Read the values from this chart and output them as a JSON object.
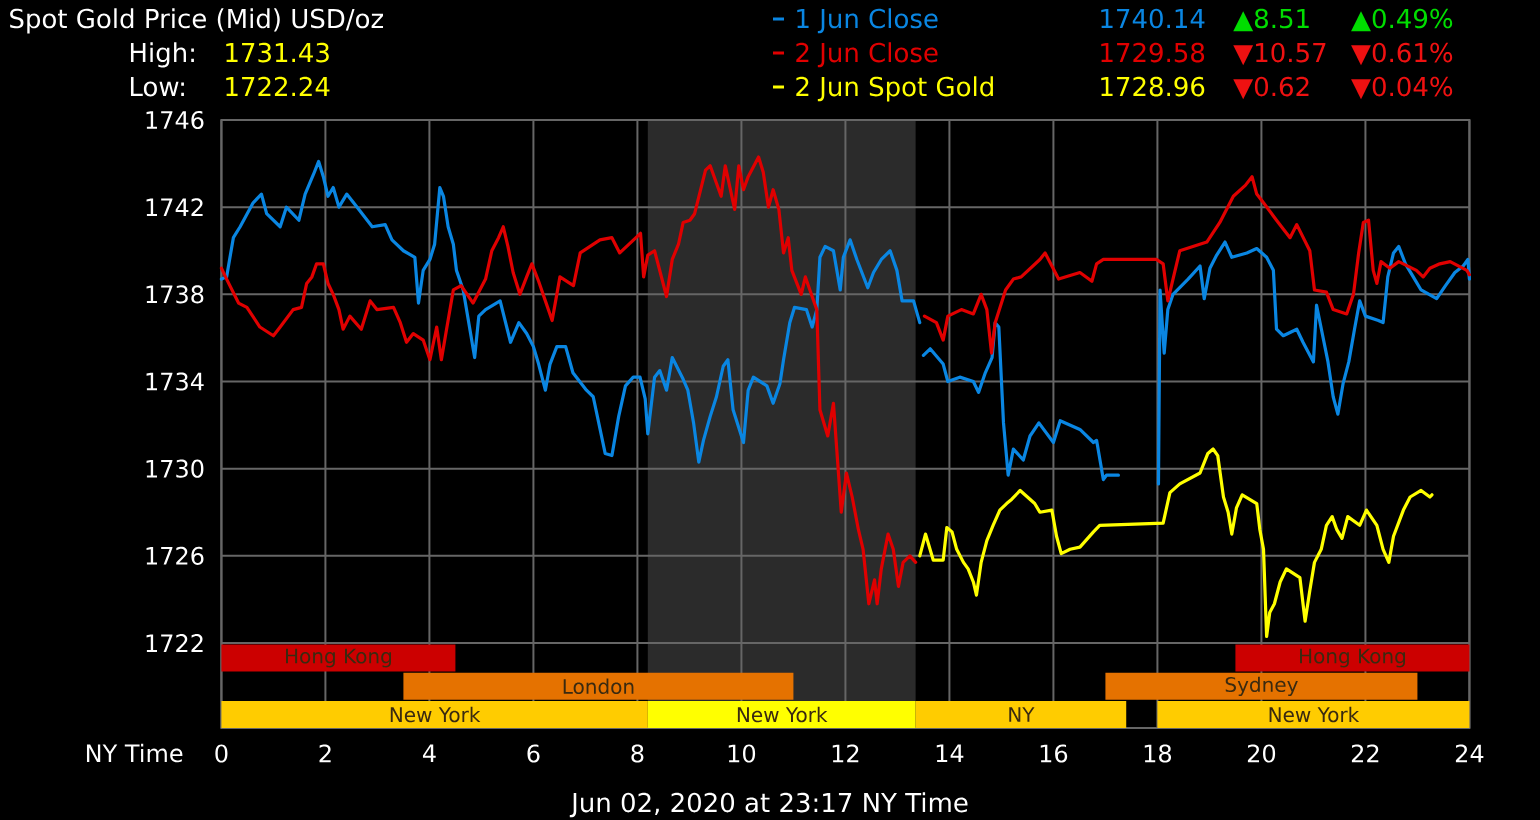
{
  "chart_data": {
    "type": "line",
    "title": "Spot Gold Price (Mid) USD/oz",
    "xlabel": "NY Time",
    "annotations": [
      "High:",
      "1731.43",
      "Low:",
      "1722.24",
      "1740.14",
      "▲8.51",
      "▲0.49%",
      "1729.58",
      "▼10.57",
      "▼0.61%",
      "1728.96",
      "▼0.62",
      "▼0.04%",
      "Jun 02, 2020 at 23:17 NY Time"
    ],
    "xlim": [
      0,
      24
    ],
    "xticks": [
      0,
      2,
      4,
      6,
      8,
      10,
      12,
      14,
      16,
      18,
      20,
      22,
      24
    ],
    "ylim": [
      1718.1,
      1746
    ],
    "yticks": [
      1722,
      1726,
      1730,
      1734,
      1738,
      1742,
      1746
    ],
    "grid": true,
    "legend": "top right",
    "bands": [
      {
        "axis": "x",
        "from": 8.2,
        "to": 13.35,
        "color": "#2b2b2b"
      },
      {
        "axis": "x",
        "from": 0,
        "to": 4.5,
        "label": "Hong Kong",
        "color": "#cc0000"
      },
      {
        "axis": "x",
        "from": 19.5,
        "to": 24,
        "label": "Hong Kong",
        "color": "#cc0000"
      },
      {
        "axis": "x",
        "from": 3.5,
        "to": 11,
        "label": "London",
        "color": "#e57200"
      },
      {
        "axis": "x",
        "from": 17,
        "to": 23,
        "label": "Sydney",
        "color": "#e57200"
      },
      {
        "axis": "x",
        "from": 0,
        "to": 8.2,
        "label": "New York",
        "color": "#ffcc00"
      },
      {
        "axis": "x",
        "from": 8.2,
        "to": 13.35,
        "label": "New York",
        "color": "#ffff00"
      },
      {
        "axis": "x",
        "from": 13.35,
        "to": 17.4,
        "label": "NY",
        "color": "#ffcc00"
      },
      {
        "axis": "x",
        "from": 18,
        "to": 24,
        "label": "New York",
        "color": "#ffcc00"
      }
    ],
    "series": [
      {
        "name": "1 Jun Close",
        "color": "#0a86e2",
        "x": [
          0,
          0.1,
          0.23,
          0.36,
          0.61,
          0.77,
          0.87,
          1.13,
          1.25,
          1.49,
          1.61,
          1.77,
          1.87,
          1.96,
          2.05,
          2.15,
          2.26,
          2.41,
          2.64,
          2.9,
          3.15,
          3.28,
          3.5,
          3.72,
          3.79,
          3.88,
          4.01,
          4.1,
          4.2,
          4.27,
          4.36,
          4.46,
          4.52,
          4.65,
          4.87,
          4.95,
          5.08,
          5.36,
          5.56,
          5.72,
          5.87,
          6.0,
          6.1,
          6.23,
          6.32,
          6.45,
          6.62,
          6.76,
          7.02,
          7.15,
          7.38,
          7.51,
          7.64,
          7.77,
          7.92,
          8.05,
          8.15,
          8.2,
          8.33,
          8.43,
          8.56,
          8.67,
          8.88,
          8.97,
          9.08,
          9.18,
          9.27,
          9.4,
          9.52,
          9.65,
          9.74,
          9.84,
          10.04,
          10.13,
          10.23,
          10.49,
          10.61,
          10.74,
          10.81,
          10.93,
          11.02,
          11.25,
          11.36,
          11.45,
          11.51,
          11.61,
          11.77,
          11.9,
          11.96,
          12.09,
          12.22,
          12.43,
          12.54,
          12.69,
          12.86,
          12.99,
          13.09,
          13.31,
          13.43,
          13.47,
          13.5,
          13.63,
          13.88,
          13.97,
          14.2,
          14.46,
          14.56,
          14.69,
          14.82,
          14.88,
          14.95,
          15.04,
          15.13,
          15.23,
          15.42,
          15.55,
          15.72,
          16.0,
          16.13,
          16.51,
          16.77,
          16.83,
          16.96,
          17.02,
          17.25,
          17.6,
          18.02,
          18.05,
          18.13,
          18.2,
          18.3,
          18.59,
          18.82,
          18.9,
          19.01,
          19.14,
          19.3,
          19.43,
          19.72,
          19.91,
          20.1,
          20.23,
          20.29,
          20.42,
          20.68,
          20.8,
          21.0,
          21.06,
          21.28,
          21.38,
          21.47,
          21.57,
          21.68,
          21.79,
          21.89,
          22.0,
          22.25,
          22.34,
          22.43,
          22.54,
          22.64,
          22.77,
          22.92,
          23.07,
          23.37,
          23.54,
          23.72,
          23.88,
          23.97,
          24.0
        ],
        "values": [
          1738.7,
          1738.8,
          1740.6,
          1741.1,
          1742.2,
          1742.6,
          1741.7,
          1741.1,
          1742.0,
          1741.4,
          1742.6,
          1743.5,
          1744.1,
          1743.4,
          1742.5,
          1742.9,
          1742.0,
          1742.6,
          1741.9,
          1741.1,
          1741.2,
          1740.5,
          1740.0,
          1739.7,
          1737.6,
          1739.1,
          1739.6,
          1740.3,
          1742.9,
          1742.5,
          1741.1,
          1740.3,
          1739.1,
          1738.2,
          1735.1,
          1737.0,
          1737.3,
          1737.7,
          1735.8,
          1736.7,
          1736.2,
          1735.6,
          1734.8,
          1733.6,
          1734.8,
          1735.6,
          1735.6,
          1734.4,
          1733.6,
          1733.3,
          1730.7,
          1730.6,
          1732.4,
          1733.8,
          1734.2,
          1734.2,
          1733.2,
          1731.6,
          1734.2,
          1734.5,
          1733.6,
          1735.1,
          1734.1,
          1733.6,
          1732.1,
          1730.3,
          1731.3,
          1732.4,
          1733.3,
          1734.7,
          1735.0,
          1732.7,
          1731.2,
          1733.6,
          1734.2,
          1733.8,
          1733.0,
          1733.9,
          1735.0,
          1736.7,
          1737.4,
          1737.3,
          1736.5,
          1737.3,
          1739.7,
          1740.2,
          1740.0,
          1738.2,
          1739.7,
          1740.5,
          1739.6,
          1738.3,
          1739.0,
          1739.6,
          1740.0,
          1739.1,
          1737.7,
          1737.7,
          1736.7,
          null,
          1735.2,
          1735.5,
          1734.8,
          1734.0,
          1734.2,
          1734.0,
          1733.5,
          1734.4,
          1735.1,
          1736.7,
          1736.5,
          1732.1,
          1729.7,
          1730.9,
          1730.4,
          1731.5,
          1732.1,
          1731.2,
          1732.2,
          1731.8,
          1731.2,
          1731.3,
          1729.5,
          1729.7,
          1729.7,
          null,
          1729.3,
          1738.2,
          1735.3,
          1737.3,
          1738.0,
          1738.7,
          1739.3,
          1737.8,
          1739.2,
          1739.8,
          1740.4,
          1739.7,
          1739.9,
          1740.1,
          1739.7,
          1739.1,
          1736.4,
          1736.1,
          1736.4,
          1735.8,
          1734.9,
          1737.5,
          1734.9,
          1733.3,
          1732.5,
          1733.9,
          1734.9,
          1736.4,
          1737.7,
          1737.0,
          1736.8,
          1736.7,
          1738.8,
          1739.9,
          1740.2,
          1739.4,
          1738.8,
          1738.2,
          1737.8,
          1738.4,
          1739.0,
          1739.3,
          1739.6,
          1738.7
        ]
      },
      {
        "name": "2 Jun Close",
        "color": "#e00000",
        "x": [
          0,
          0.1,
          0.33,
          0.49,
          0.74,
          1.0,
          1.13,
          1.38,
          1.54,
          1.64,
          1.74,
          1.83,
          1.96,
          2.05,
          2.15,
          2.26,
          2.34,
          2.47,
          2.69,
          2.86,
          2.99,
          3.31,
          3.44,
          3.56,
          3.69,
          3.88,
          4.01,
          4.14,
          4.23,
          4.33,
          4.46,
          4.61,
          4.84,
          5.08,
          5.2,
          5.33,
          5.42,
          5.51,
          5.61,
          5.74,
          5.87,
          5.97,
          6.1,
          6.23,
          6.36,
          6.51,
          6.77,
          6.9,
          7.28,
          7.51,
          7.66,
          8.06,
          8.12,
          8.2,
          8.33,
          8.56,
          8.67,
          8.79,
          8.88,
          9.01,
          9.1,
          9.31,
          9.4,
          9.61,
          9.69,
          9.78,
          9.87,
          9.95,
          10.04,
          10.13,
          10.33,
          10.42,
          10.52,
          10.61,
          10.72,
          10.81,
          10.9,
          10.97,
          11.15,
          11.23,
          11.36,
          11.45,
          11.51,
          11.66,
          11.77,
          11.92,
          12.02,
          12.13,
          12.25,
          12.34,
          12.45,
          12.56,
          12.61,
          12.69,
          12.82,
          12.92,
          13.02,
          13.11,
          13.24,
          13.35,
          13.44,
          13.52,
          13.75,
          13.88,
          13.97,
          14.23,
          14.46,
          14.61,
          14.72,
          14.81,
          14.88,
          15.08,
          15.23,
          15.38,
          15.74,
          15.84,
          16.1,
          16.51,
          16.74,
          16.83,
          16.96,
          17.98,
          18.11,
          18.2,
          18.43,
          18.95,
          19.2,
          19.46,
          19.69,
          19.82,
          19.91,
          20.04,
          20.29,
          20.55,
          20.68,
          20.93,
          21.02,
          21.25,
          21.38,
          21.64,
          21.77,
          21.87,
          21.96,
          22.06,
          22.15,
          22.22,
          22.3,
          22.47,
          22.64,
          22.98,
          23.11,
          23.24,
          23.43,
          23.63,
          23.95,
          24.0
        ],
        "values": [
          1739.2,
          1738.7,
          1737.6,
          1737.4,
          1736.5,
          1736.1,
          1736.5,
          1737.3,
          1737.4,
          1738.5,
          1738.8,
          1739.4,
          1739.4,
          1738.5,
          1738.0,
          1737.3,
          1736.4,
          1737.0,
          1736.4,
          1737.7,
          1737.3,
          1737.4,
          1736.7,
          1735.8,
          1736.2,
          1735.9,
          1735.0,
          1736.5,
          1735.0,
          1736.4,
          1738.2,
          1738.4,
          1737.6,
          1738.7,
          1740.0,
          1740.6,
          1741.1,
          1740.2,
          1739.0,
          1738.0,
          1738.8,
          1739.4,
          1738.6,
          1737.7,
          1736.8,
          1738.8,
          1738.4,
          1739.9,
          1740.5,
          1740.6,
          1739.9,
          1740.8,
          1738.8,
          1739.8,
          1740.0,
          1737.9,
          1739.6,
          1740.3,
          1741.3,
          1741.4,
          1741.7,
          1743.7,
          1743.9,
          1742.5,
          1743.9,
          1742.9,
          1741.9,
          1743.9,
          1742.8,
          1743.4,
          1744.3,
          1743.6,
          1742.0,
          1742.8,
          1741.9,
          1739.9,
          1740.6,
          1739.1,
          1738.0,
          1738.8,
          1737.9,
          1737.3,
          1732.7,
          1731.5,
          1733.0,
          1728.0,
          1729.8,
          1728.7,
          1727.2,
          1726.3,
          1723.8,
          1724.9,
          1723.8,
          1725.4,
          1727.0,
          1726.3,
          1724.6,
          1725.7,
          1726.0,
          1725.7,
          null,
          1737.0,
          1736.7,
          1735.9,
          1737.0,
          1737.3,
          1737.1,
          1738.0,
          1737.3,
          1735.3,
          1736.7,
          1738.2,
          1738.7,
          1738.8,
          1739.6,
          1739.9,
          1738.7,
          1739.0,
          1738.6,
          1739.4,
          1739.6,
          1739.6,
          1739.4,
          1737.7,
          1740.0,
          1740.4,
          1741.3,
          1742.5,
          1743.0,
          1743.4,
          1742.6,
          1742.2,
          1741.4,
          1740.6,
          1741.2,
          1740.0,
          1738.2,
          1738.1,
          1737.3,
          1737.1,
          1738.0,
          1739.9,
          1741.3,
          1741.4,
          1739.1,
          1738.5,
          1739.5,
          1739.2,
          1739.5,
          1739.1,
          1738.8,
          1739.2,
          1739.4,
          1739.5,
          1739.1,
          1738.9
        ]
      },
      {
        "name": "2 Jun Spot Gold",
        "color": "#ffff00",
        "x": [
          13.43,
          13.54,
          13.69,
          13.88,
          13.95,
          14.05,
          14.14,
          14.27,
          14.36,
          14.46,
          14.52,
          14.61,
          14.72,
          14.84,
          14.97,
          15.1,
          15.2,
          15.36,
          15.64,
          15.74,
          15.97,
          16.06,
          16.15,
          16.32,
          16.51,
          16.77,
          16.89,
          18.11,
          18.24,
          18.43,
          18.82,
          18.97,
          19.07,
          19.16,
          19.27,
          19.36,
          19.43,
          19.52,
          19.63,
          19.91,
          19.97,
          20.04,
          20.1,
          20.16,
          20.25,
          20.36,
          20.48,
          20.74,
          20.84,
          20.93,
          21.02,
          21.15,
          21.25,
          21.36,
          21.45,
          21.55,
          21.66,
          21.89,
          22.02,
          22.22,
          22.34,
          22.45,
          22.54,
          22.73,
          22.86,
          23.07,
          23.24,
          23.28
        ],
        "values": [
          1726.0,
          1727.0,
          1725.8,
          1725.8,
          1727.3,
          1727.1,
          1726.3,
          1725.7,
          1725.4,
          1724.8,
          1724.2,
          1725.7,
          1726.7,
          1727.4,
          1728.1,
          1728.4,
          1728.6,
          1729.0,
          1728.4,
          1728.0,
          1728.1,
          1726.9,
          1726.1,
          1726.3,
          1726.4,
          1727.1,
          1727.4,
          1727.5,
          1728.9,
          1729.3,
          1729.8,
          1730.7,
          1730.9,
          1730.6,
          1728.7,
          1728.0,
          1727.0,
          1728.2,
          1728.8,
          1728.4,
          1727.2,
          1726.3,
          1722.3,
          1723.4,
          1723.8,
          1724.8,
          1725.4,
          1725.0,
          1723.0,
          1724.4,
          1725.7,
          1726.3,
          1727.4,
          1727.8,
          1727.2,
          1726.8,
          1727.8,
          1727.4,
          1728.1,
          1727.4,
          1726.3,
          1725.7,
          1726.9,
          1728.1,
          1728.7,
          1729.0,
          1728.7,
          1728.8
        ]
      }
    ]
  }
}
